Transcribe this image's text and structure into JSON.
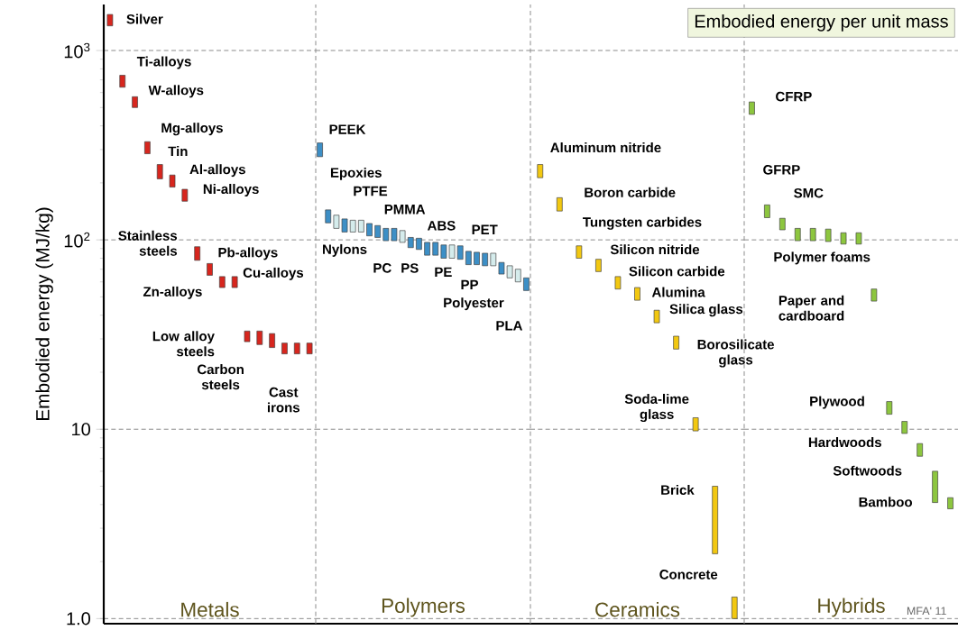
{
  "chart_data": [
    {
      "type": "bar",
      "xlabel": "Metals",
      "ylabel": "Embodied energy (MJ/kg)",
      "log": "y",
      "ylim": [
        0.94,
        1750
      ],
      "grid": "y",
      "tick_labels": "y",
      "color": "#d7261e",
      "yticks": [
        {
          "value": 1,
          "label": "1.0"
        },
        10,
        {
          "value": 100,
          "label": "10$^{2}$"
        },
        {
          "value": 1000,
          "label": "10$^{3}$"
        }
      ],
      "categories": [
        null,
        null,
        null,
        null,
        null,
        null,
        null,
        null,
        null,
        null,
        null,
        null,
        null,
        null,
        null,
        null,
        null
      ],
      "base": [
        1350,
        640,
        500,
        285,
        210,
        190,
        160,
        78,
        65,
        56,
        56,
        29,
        28,
        27,
        25,
        25,
        25
      ],
      "values": [
        200,
        100,
        70,
        45,
        40,
        30,
        25,
        14,
        10,
        8,
        8,
        4,
        5,
        5,
        3.5,
        3.5,
        3.5
      ],
      "annotations": [
        "Silver",
        "Ti-alloys",
        "W-alloys",
        "Mg-alloys",
        "Tin",
        "Al-alloys",
        "Ni-alloys",
        "Stainless steels",
        "Pb-alloys",
        "Zn-alloys",
        "Cu-alloys",
        "Low alloy steels",
        "Carbon steels",
        "Cast irons"
      ]
    },
    {
      "type": "bar",
      "xlabel": "Polymers",
      "log": "y",
      "ylim": [
        0.94,
        1750
      ],
      "grid": "y",
      "tick_labels": false,
      "yticks": [
        1,
        10,
        100,
        1000
      ],
      "categories": [
        null,
        null,
        null,
        null,
        null,
        null,
        null,
        null,
        null,
        null,
        null,
        null,
        null,
        null,
        null,
        null,
        null,
        null,
        null,
        null,
        null,
        null,
        null,
        null,
        null,
        null
      ],
      "base": [
        275,
        123,
        115,
        110,
        110,
        110,
        105,
        103,
        99,
        99,
        97,
        91,
        89,
        83,
        83,
        80,
        80,
        79,
        74,
        74,
        73,
        73,
        66,
        63,
        60,
        54
      ],
      "values": [
        50,
        21,
        20,
        19,
        17,
        17,
        17,
        16,
        16,
        16,
        15,
        12,
        13,
        14,
        14,
        14,
        14,
        14,
        13,
        12,
        12,
        12,
        10,
        10,
        10,
        9
      ],
      "colors": [
        "#3d8fc6",
        "#3d8fc6",
        "#d5ecec",
        "#3d8fc6",
        "#d5ecec",
        "#d5ecec",
        "#3d8fc6",
        "#3d8fc6",
        "#3d8fc6",
        "#3d8fc6",
        "#d5ecec",
        "#3d8fc6",
        "#3d8fc6",
        "#3d8fc6",
        "#3d8fc6",
        "#3d8fc6",
        "#d5ecec",
        "#3d8fc6",
        "#3d8fc6",
        "#3d8fc6",
        "#3d8fc6",
        "#d5ecec",
        "#3d8fc6",
        "#d5ecec",
        "#d5ecec",
        "#3d8fc6"
      ],
      "annotations": [
        "PEEK",
        "Epoxies",
        "Nylons",
        "PTFE",
        "PMMA",
        "PC",
        "PS",
        "ABS",
        "PET",
        "PE",
        "PP",
        "Polyester",
        "PLA"
      ]
    },
    {
      "type": "bar",
      "xlabel": "Ceramics",
      "log": "y",
      "ylim": [
        0.94,
        1750
      ],
      "grid": "y",
      "tick_labels": false,
      "color": "#f2c811",
      "yticks": [
        1,
        10,
        100,
        1000
      ],
      "categories": [
        null,
        null,
        null,
        null,
        null,
        null,
        null,
        null,
        null,
        null,
        null
      ],
      "base": [
        213,
        142,
        80,
        68,
        55,
        48,
        36.5,
        26.5,
        9.8,
        2.2,
        1.0
      ],
      "values": [
        37,
        25,
        13,
        11,
        9,
        8,
        6,
        4.5,
        1.7,
        2.8,
        0.3
      ],
      "annotations": [
        "Aluminum nitride",
        "Boron carbide",
        "Tungsten carbides",
        "Silicon nitride",
        "Silicon carbide",
        "Alumina",
        "Silica glass",
        "Borosilicate glass",
        "Soda-lime glass",
        "Brick",
        "Concrete"
      ]
    },
    {
      "type": "bar",
      "title": "Embodied energy per unit mass",
      "xlabel": "Hybrids",
      "log": "y",
      "ylim": [
        0.94,
        1750
      ],
      "grid": "y",
      "tick_labels": false,
      "color": "#8dc63f",
      "yticks": [
        1,
        10,
        100,
        1000
      ],
      "categories": [
        null,
        null,
        null,
        null,
        null,
        null,
        null,
        null,
        null,
        null,
        null,
        null,
        null,
        null
      ],
      "base": [
        460,
        131,
        113,
        99,
        99,
        98,
        95,
        95,
        47.5,
        12,
        9.5,
        7.2,
        4.1,
        3.8
      ],
      "values": [
        75,
        22,
        17,
        16,
        16,
        16,
        14,
        14,
        7.5,
        2,
        1.5,
        1.2,
        1.9,
        0.55
      ],
      "annotations": [
        "CFRP",
        "GFRP",
        "SMC",
        "Polymer foams",
        "Paper and cardboard",
        "Plywood",
        "Hardwoods",
        "Softwoods",
        "Bamboo",
        "MFA' 11"
      ]
    }
  ]
}
